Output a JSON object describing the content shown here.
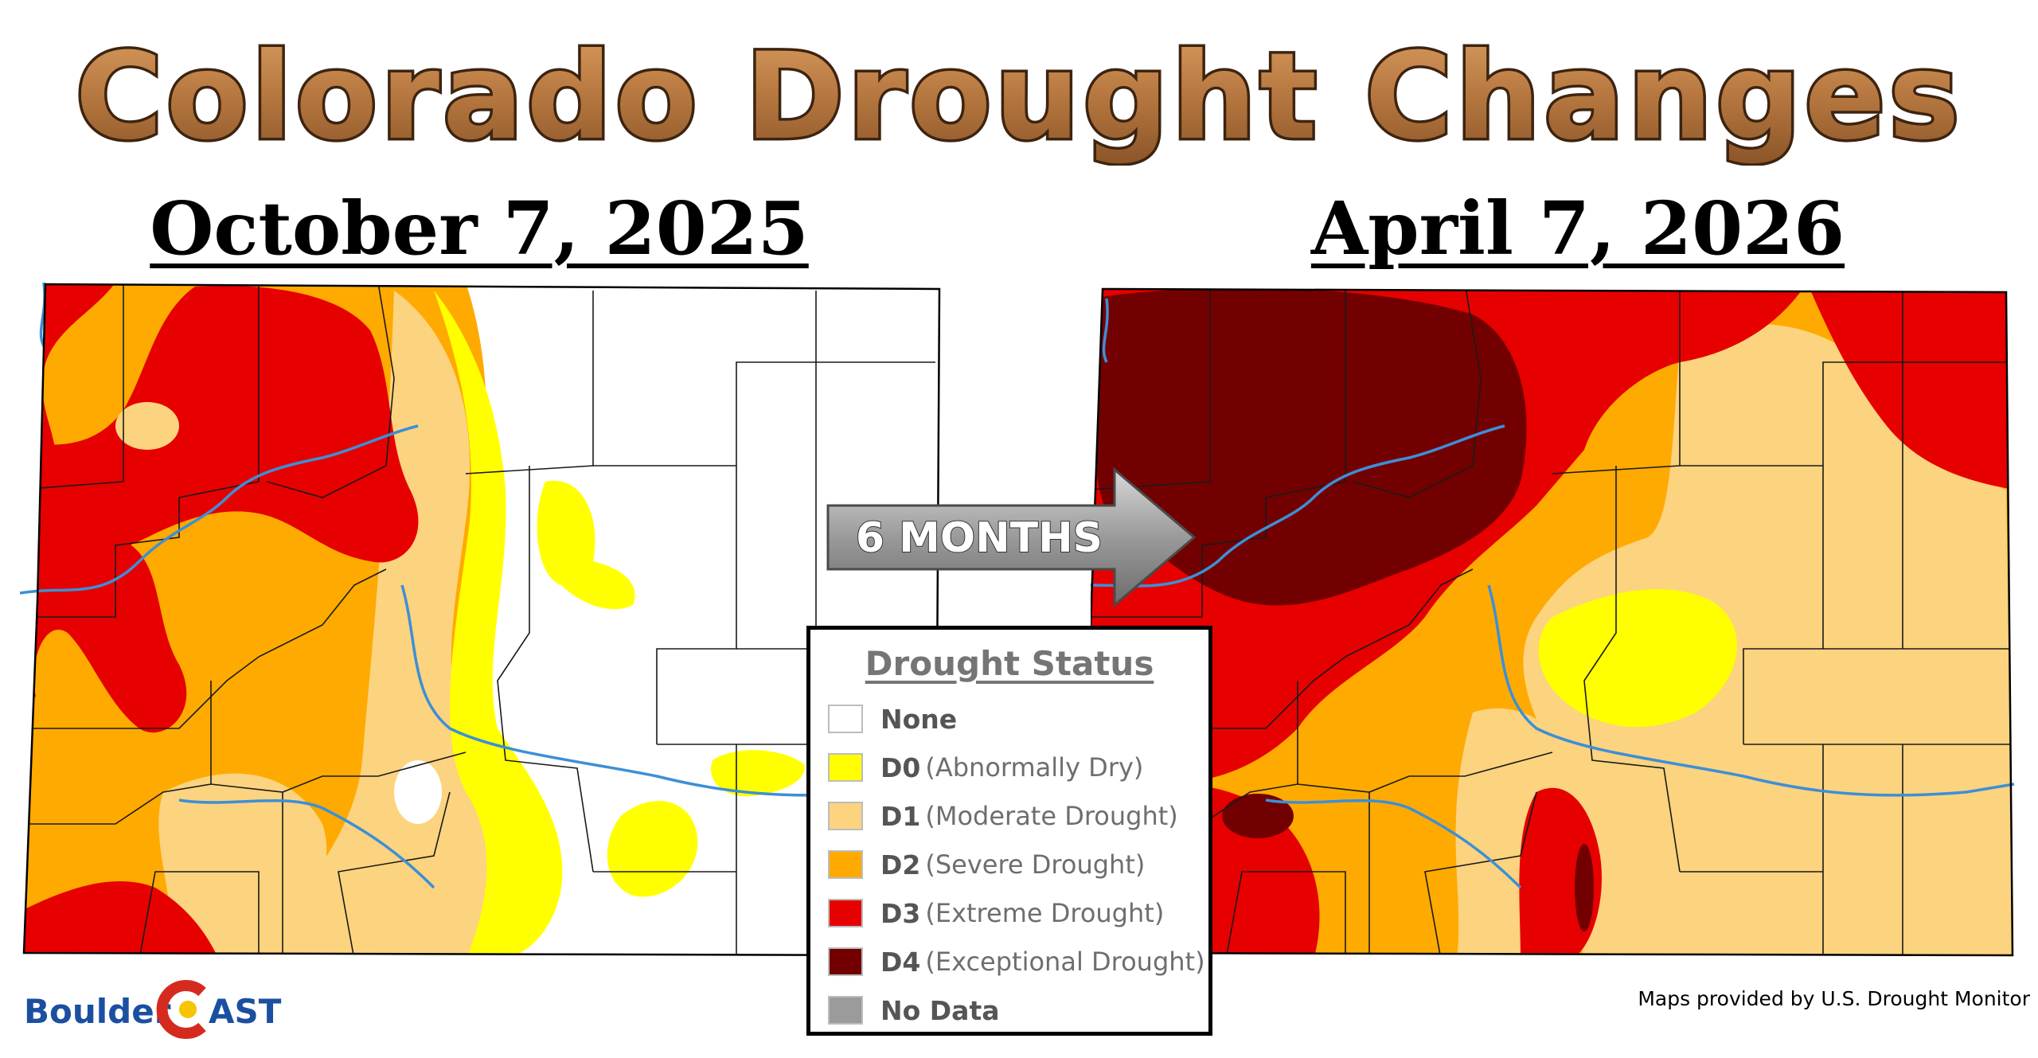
{
  "title": "Colorado Drought Changes",
  "dates": {
    "before": "October 7, 2025",
    "after": "April 7, 2026"
  },
  "arrow_label": "6 MONTHS",
  "legend": {
    "title": "Drought Status",
    "items": [
      {
        "code": "None",
        "desc": "",
        "color": "#ffffff"
      },
      {
        "code": "D0",
        "desc": "(Abnormally Dry)",
        "color": "#ffff00"
      },
      {
        "code": "D1",
        "desc": "(Moderate Drought)",
        "color": "#fcd37f"
      },
      {
        "code": "D2",
        "desc": "(Severe Drought)",
        "color": "#ffaa00"
      },
      {
        "code": "D3",
        "desc": "(Extreme Drought)",
        "color": "#e60000"
      },
      {
        "code": "D4",
        "desc": "(Exceptional Drought)",
        "color": "#730000"
      },
      {
        "code": "No Data",
        "desc": "",
        "color": "#9b9b9b"
      }
    ]
  },
  "brand": {
    "part1": "Boulder",
    "part2": "AST"
  },
  "credit": "Maps provided by U.S. Drought Monitor",
  "colors": {
    "title_fill": "#b5773f",
    "title_stroke": "#3d2410",
    "river": "#3d8fd6",
    "county_line": "#1a1a1a",
    "arrow_fill": "#8f8f8f",
    "brand_blue": "#1b4fa0",
    "brand_red": "#d52b1e",
    "brand_yellow": "#f6c400"
  }
}
